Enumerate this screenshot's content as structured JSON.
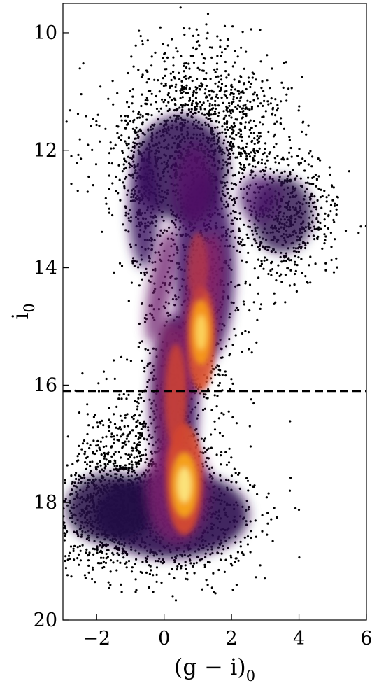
{
  "chart_data": {
    "type": "scatter",
    "subtype": "hexbin density color-magnitude diagram",
    "xlabel": "(g − i)",
    "xlabel_subscript": "0",
    "ylabel": "i",
    "ylabel_subscript": "0",
    "xlim": [
      -3,
      6
    ],
    "ylim": [
      20,
      9.5
    ],
    "y_inverted": true,
    "x_ticks": [
      -2,
      0,
      2,
      4,
      6
    ],
    "x_tick_labels": [
      "−2",
      "0",
      "2",
      "4",
      "6"
    ],
    "y_ticks": [
      10,
      12,
      14,
      16,
      18,
      20
    ],
    "y_tick_labels": [
      "10",
      "12",
      "14",
      "16",
      "18",
      "20"
    ],
    "colormap": "inferno",
    "point_color": "#000000",
    "reference_line": {
      "orientation": "horizontal",
      "y": 16.1,
      "style": "dashed",
      "color": "#000000"
    },
    "density_peaks": [
      {
        "x": 0.6,
        "y": 17.7,
        "note": "main sequence turnoff density peak"
      },
      {
        "x": 1.1,
        "y": 15.1,
        "note": "red clump / giant branch density peak"
      }
    ],
    "grid": false,
    "legend": "none"
  }
}
